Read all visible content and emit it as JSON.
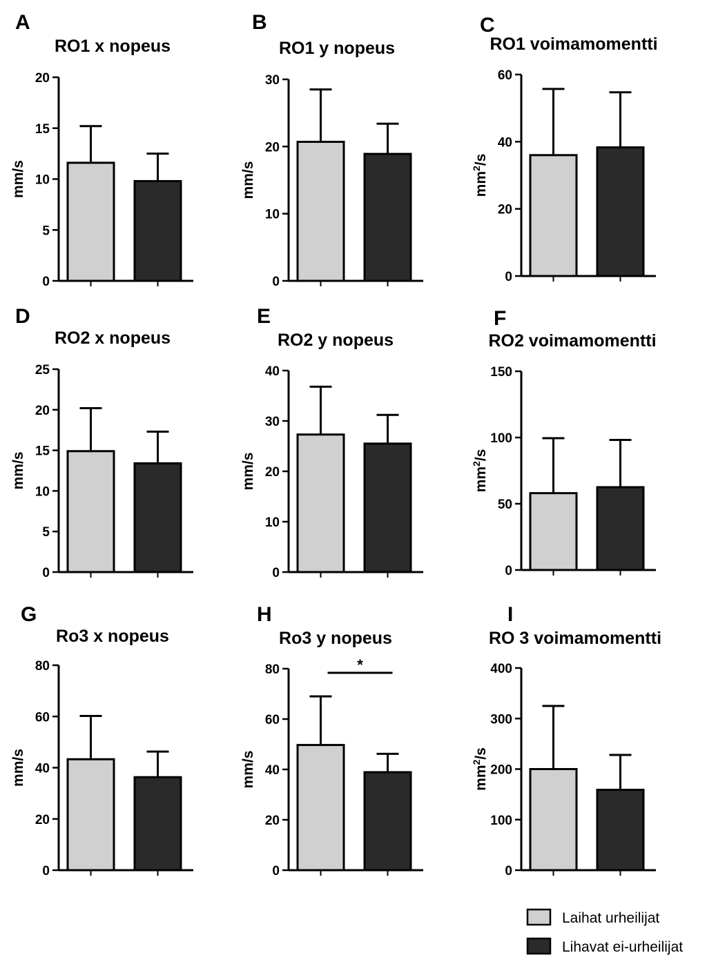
{
  "colors": {
    "group1": "#d0d0d0",
    "group2": "#2a2a2a",
    "axis": "#000000"
  },
  "legend": {
    "items": [
      {
        "label": "Laihat urheilijat",
        "color": "#d0d0d0"
      },
      {
        "label": "Lihavat ei-urheilijat",
        "color": "#2a2a2a"
      }
    ]
  },
  "chart_data": [
    {
      "letter": "A",
      "type": "bar",
      "title": "RO1 x nopeus",
      "ylabel": "mm/s",
      "ylabel_sup": "",
      "ylim": [
        0,
        20
      ],
      "ticks": [
        0,
        5,
        10,
        15,
        20
      ],
      "series": [
        {
          "name": "Laihat urheilijat",
          "value": 11.6,
          "error": 3.6
        },
        {
          "name": "Lihavat ei-urheilijat",
          "value": 9.8,
          "error": 2.7
        }
      ],
      "significance": ""
    },
    {
      "letter": "B",
      "type": "bar",
      "title": "RO1 y nopeus",
      "ylabel": "mm/s",
      "ylabel_sup": "",
      "ylim": [
        0,
        30
      ],
      "ticks": [
        0,
        10,
        20,
        30
      ],
      "series": [
        {
          "name": "Laihat urheilijat",
          "value": 20.7,
          "error": 7.8
        },
        {
          "name": "Lihavat ei-urheilijat",
          "value": 18.9,
          "error": 4.5
        }
      ],
      "significance": ""
    },
    {
      "letter": "C",
      "type": "bar",
      "title": "RO1 voimamomentti",
      "ylabel": "mm",
      "ylabel_sup": "2",
      "ylabel_post": "/s",
      "ylim": [
        0,
        60
      ],
      "ticks": [
        0,
        20,
        40,
        60
      ],
      "series": [
        {
          "name": "Laihat urheilijat",
          "value": 36,
          "error": 19.7
        },
        {
          "name": "Lihavat ei-urheilijat",
          "value": 38.3,
          "error": 16.4
        }
      ],
      "significance": ""
    },
    {
      "letter": "D",
      "type": "bar",
      "title": "RO2 x nopeus",
      "ylabel": "mm/s",
      "ylabel_sup": "",
      "ylim": [
        0,
        25
      ],
      "ticks": [
        0,
        5,
        10,
        15,
        20,
        25
      ],
      "series": [
        {
          "name": "Laihat urheilijat",
          "value": 14.9,
          "error": 5.3
        },
        {
          "name": "Lihavat ei-urheilijat",
          "value": 13.4,
          "error": 3.9
        }
      ],
      "significance": ""
    },
    {
      "letter": "E",
      "type": "bar",
      "title": "RO2 y nopeus",
      "ylabel": "mm/s",
      "ylabel_sup": "",
      "ylim": [
        0,
        40
      ],
      "ticks": [
        0,
        10,
        20,
        30,
        40
      ],
      "series": [
        {
          "name": "Laihat urheilijat",
          "value": 27.3,
          "error": 9.5
        },
        {
          "name": "Lihavat ei-urheilijat",
          "value": 25.5,
          "error": 5.7
        }
      ],
      "significance": ""
    },
    {
      "letter": "F",
      "type": "bar",
      "title": "RO2 voimamomentti",
      "ylabel": "mm",
      "ylabel_sup": "2",
      "ylabel_post": "/s",
      "ylim": [
        0,
        150
      ],
      "ticks": [
        0,
        50,
        100,
        150
      ],
      "series": [
        {
          "name": "Laihat urheilijat",
          "value": 58,
          "error": 41.5
        },
        {
          "name": "Lihavat ei-urheilijat",
          "value": 62.5,
          "error": 35.7
        }
      ],
      "significance": ""
    },
    {
      "letter": "G",
      "type": "bar",
      "title": "Ro3 x nopeus",
      "ylabel": "mm/s",
      "ylabel_sup": "",
      "ylim": [
        0,
        80
      ],
      "ticks": [
        0,
        20,
        40,
        60,
        80
      ],
      "series": [
        {
          "name": "Laihat urheilijat",
          "value": 43.3,
          "error": 16.9
        },
        {
          "name": "Lihavat ei-urheilijat",
          "value": 36.3,
          "error": 10
        }
      ],
      "significance": ""
    },
    {
      "letter": "H",
      "type": "bar",
      "title": "Ro3 y nopeus",
      "ylabel": "mm/s",
      "ylabel_sup": "",
      "ylim": [
        0,
        80
      ],
      "ticks": [
        0,
        20,
        40,
        60,
        80
      ],
      "series": [
        {
          "name": "Laihat urheilijat",
          "value": 49.7,
          "error": 19.3
        },
        {
          "name": "Lihavat ei-urheilijat",
          "value": 38.9,
          "error": 7.3
        }
      ],
      "significance": "*"
    },
    {
      "letter": "I",
      "type": "bar",
      "title": "RO 3 voimamomentti",
      "ylabel": "mm",
      "ylabel_sup": "2",
      "ylabel_post": "/s",
      "ylim": [
        0,
        400
      ],
      "ticks": [
        0,
        100,
        200,
        300,
        400
      ],
      "series": [
        {
          "name": "Laihat urheilijat",
          "value": 200,
          "error": 125
        },
        {
          "name": "Lihavat ei-urheilijat",
          "value": 159,
          "error": 69
        }
      ],
      "significance": ""
    }
  ]
}
